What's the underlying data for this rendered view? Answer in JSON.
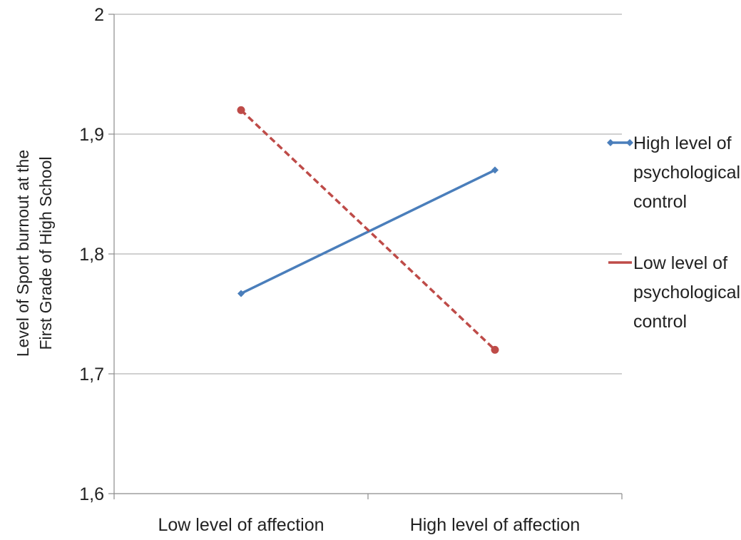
{
  "chart_data": {
    "type": "line",
    "categories": [
      "Low level of affection",
      "High level of affection"
    ],
    "series": [
      {
        "name": "High level of psychological control",
        "values": [
          1.767,
          1.87
        ],
        "color": "#4a7ebb",
        "dash": "solid",
        "marker": "diamond"
      },
      {
        "name": "Low level of psychological control",
        "values": [
          1.92,
          1.72
        ],
        "color": "#be4b48",
        "dash": "dashed",
        "marker": "circle"
      }
    ],
    "ylim": [
      1.6,
      2.0
    ],
    "yticks": [
      "1,6",
      "1,7",
      "1,8",
      "1,9",
      "2"
    ],
    "ytick_values": [
      1.6,
      1.7,
      1.8,
      1.9,
      2.0
    ],
    "ylabel_lines": [
      "Level of Sport burnout at the",
      "First Grade of High School"
    ],
    "legend_lines": [
      [
        "High level of",
        "psychological",
        "control"
      ],
      [
        "Low level of",
        "psychological",
        "control"
      ]
    ],
    "grid": true,
    "legend_position": "right"
  }
}
